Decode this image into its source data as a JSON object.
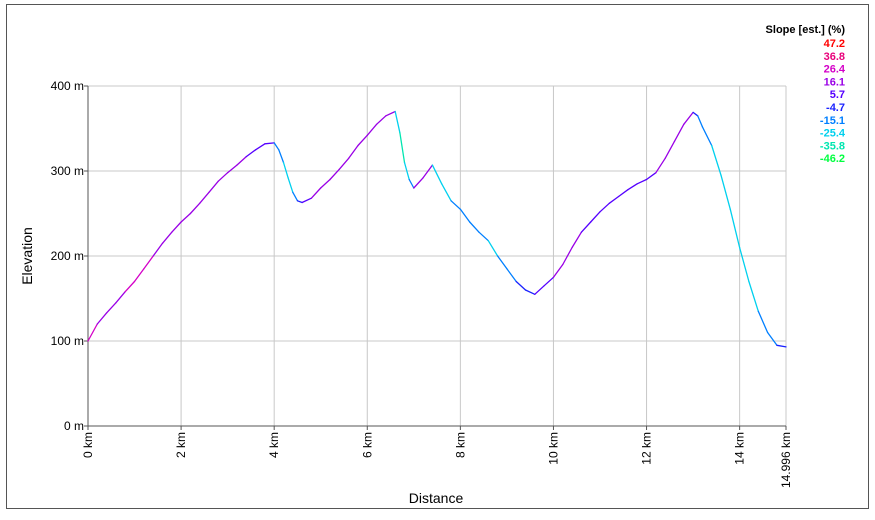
{
  "chart_data": {
    "type": "line",
    "title": "",
    "xlabel": "Distance",
    "ylabel": "Elevation",
    "xlim": [
      0,
      14.996
    ],
    "ylim": [
      0,
      400
    ],
    "x_ticks": [
      {
        "value": 0,
        "label": "0 km"
      },
      {
        "value": 2,
        "label": "2 km"
      },
      {
        "value": 4,
        "label": "4 km"
      },
      {
        "value": 6,
        "label": "6 km"
      },
      {
        "value": 8,
        "label": "8 km"
      },
      {
        "value": 10,
        "label": "10 km"
      },
      {
        "value": 12,
        "label": "12 km"
      },
      {
        "value": 14,
        "label": "14 km"
      },
      {
        "value": 14.996,
        "label": "14.996 km"
      }
    ],
    "y_ticks": [
      {
        "value": 0,
        "label": "0 m"
      },
      {
        "value": 100,
        "label": "100 m"
      },
      {
        "value": 200,
        "label": "200 m"
      },
      {
        "value": 300,
        "label": "300 m"
      },
      {
        "value": 400,
        "label": "400 m"
      }
    ],
    "grid": true,
    "legend": {
      "title": "Slope [est.] (%)",
      "placement": "top-right",
      "entries": [
        {
          "label": "47.2",
          "color": "#ff0000"
        },
        {
          "label": "36.8",
          "color": "#e8007a"
        },
        {
          "label": "26.4",
          "color": "#d400c8"
        },
        {
          "label": "16.1",
          "color": "#9a00e6"
        },
        {
          "label": "5.7",
          "color": "#5500ff"
        },
        {
          "label": "-4.7",
          "color": "#1a22ff"
        },
        {
          "label": "-15.1",
          "color": "#007fff"
        },
        {
          "label": "-25.4",
          "color": "#00d0ee"
        },
        {
          "label": "-35.8",
          "color": "#00e6b0"
        },
        {
          "label": "-46.2",
          "color": "#00ff40"
        }
      ]
    },
    "series": [
      {
        "x": [
          0,
          0.2,
          0.4,
          0.6,
          0.8,
          1.0,
          1.2,
          1.4,
          1.6,
          1.8,
          2.0,
          2.2,
          2.4,
          2.6,
          2.8,
          3.0,
          3.2,
          3.4,
          3.6,
          3.8,
          4.0,
          4.1,
          4.2,
          4.3,
          4.4,
          4.5,
          4.6,
          4.8,
          5.0,
          5.2,
          5.4,
          5.6,
          5.8,
          6.0,
          6.2,
          6.4,
          6.6,
          6.7,
          6.8,
          6.9,
          7.0,
          7.2,
          7.4,
          7.6,
          7.8,
          8.0,
          8.2,
          8.4,
          8.6,
          8.8,
          9.0,
          9.2,
          9.4,
          9.6,
          9.8,
          10.0,
          10.2,
          10.4,
          10.6,
          10.8,
          11.0,
          11.2,
          11.4,
          11.6,
          11.8,
          12.0,
          12.2,
          12.4,
          12.6,
          12.8,
          13.0,
          13.1,
          13.2,
          13.4,
          13.6,
          13.8,
          14.0,
          14.2,
          14.4,
          14.6,
          14.8,
          14.996
        ],
        "y": [
          100,
          120,
          133,
          145,
          158,
          170,
          185,
          200,
          215,
          228,
          240,
          250,
          262,
          275,
          288,
          298,
          307,
          317,
          325,
          332,
          333,
          325,
          310,
          292,
          275,
          265,
          263,
          268,
          280,
          290,
          302,
          315,
          330,
          342,
          355,
          365,
          370,
          345,
          310,
          290,
          280,
          292,
          307,
          285,
          265,
          255,
          240,
          228,
          218,
          200,
          185,
          170,
          160,
          155,
          165,
          175,
          190,
          210,
          228,
          240,
          252,
          262,
          270,
          278,
          285,
          290,
          298,
          315,
          335,
          355,
          369,
          365,
          352,
          330,
          295,
          255,
          210,
          170,
          135,
          110,
          95,
          93
        ],
        "slope_colors": [
          "#d400c8",
          "#9a00e6",
          "#9a00e6",
          "#9a00e6",
          "#d400c8",
          "#d400c8",
          "#d400c8",
          "#9a00e6",
          "#9a00e6",
          "#9a00e6",
          "#9a00e6",
          "#9a00e6",
          "#9a00e6",
          "#9a00e6",
          "#9a00e6",
          "#9a00e6",
          "#9a00e6",
          "#5500ff",
          "#5500ff",
          "#5500ff",
          "#007fff",
          "#007fff",
          "#00d0ee",
          "#00d0ee",
          "#007fff",
          "#1a22ff",
          "#5500ff",
          "#9a00e6",
          "#9a00e6",
          "#9a00e6",
          "#9a00e6",
          "#9a00e6",
          "#9a00e6",
          "#9a00e6",
          "#9a00e6",
          "#9a00e6",
          "#00d0ee",
          "#00e6b0",
          "#00d0ee",
          "#007fff",
          "#9a00e6",
          "#9a00e6",
          "#00d0ee",
          "#00d0ee",
          "#007fff",
          "#007fff",
          "#007fff",
          "#007fff",
          "#00d0ee",
          "#007fff",
          "#007fff",
          "#1a22ff",
          "#1a22ff",
          "#5500ff",
          "#5500ff",
          "#9a00e6",
          "#9a00e6",
          "#9a00e6",
          "#5500ff",
          "#5500ff",
          "#5500ff",
          "#5500ff",
          "#5500ff",
          "#5500ff",
          "#5500ff",
          "#5500ff",
          "#9a00e6",
          "#9a00e6",
          "#9a00e6",
          "#9a00e6",
          "#1a22ff",
          "#007fff",
          "#007fff",
          "#00d0ee",
          "#00d0ee",
          "#00d0ee",
          "#00d0ee",
          "#00d0ee",
          "#007fff",
          "#007fff",
          "#1a22ff"
        ]
      }
    ]
  }
}
